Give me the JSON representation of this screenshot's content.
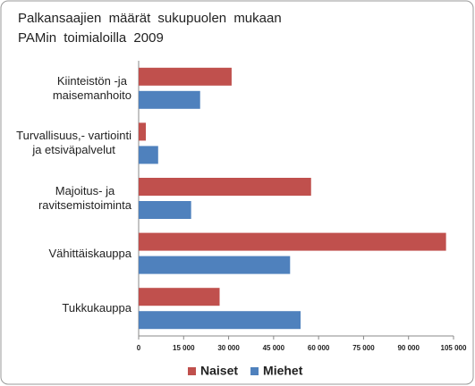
{
  "chart_data": {
    "type": "hbar",
    "title": "Palkansaajien määrät sukupuolen mukaan\nPAMin toimialoilla 2009",
    "categories": [
      "Kiinteistön -ja\nmaisemanhoito",
      "Turvallisuus,- vartiointi\nja etsiväpalvelut",
      "Majoitus- ja\nravitsemistoiminta",
      "Vähittäiskauppa",
      "Tukkukauppa"
    ],
    "series": [
      {
        "name": "Naiset",
        "color": "#c0504d",
        "values": [
          31000,
          2400,
          57500,
          102500,
          27000
        ]
      },
      {
        "name": "Miehet",
        "color": "#4f81bd",
        "values": [
          20500,
          6500,
          17500,
          50500,
          54000
        ]
      }
    ],
    "xlim": [
      0,
      105000
    ],
    "xticks": [
      0,
      {
        "value": 15000,
        "label": "15 000"
      },
      {
        "value": 30000,
        "label": "30 000"
      },
      {
        "value": 45000,
        "label": "45 000"
      },
      {
        "value": 60000,
        "label": "60 000"
      },
      {
        "value": 75000,
        "label": "75 000"
      },
      {
        "value": 90000,
        "label": "90 000"
      },
      {
        "value": 105000,
        "label": "105 000"
      }
    ],
    "legend": "bottom"
  }
}
